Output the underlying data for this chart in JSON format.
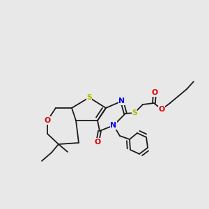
{
  "background_color": "#e8e8e8",
  "figsize": [
    3.0,
    3.0
  ],
  "dpi": 100,
  "atom_colors": {
    "S_thio": "#b8b800",
    "S_ether": "#b8b800",
    "N": "#0000ee",
    "O": "#dd0000",
    "C": "#1a1a1a"
  },
  "bond_color": "#1a1a1a",
  "bond_lw": 1.3
}
